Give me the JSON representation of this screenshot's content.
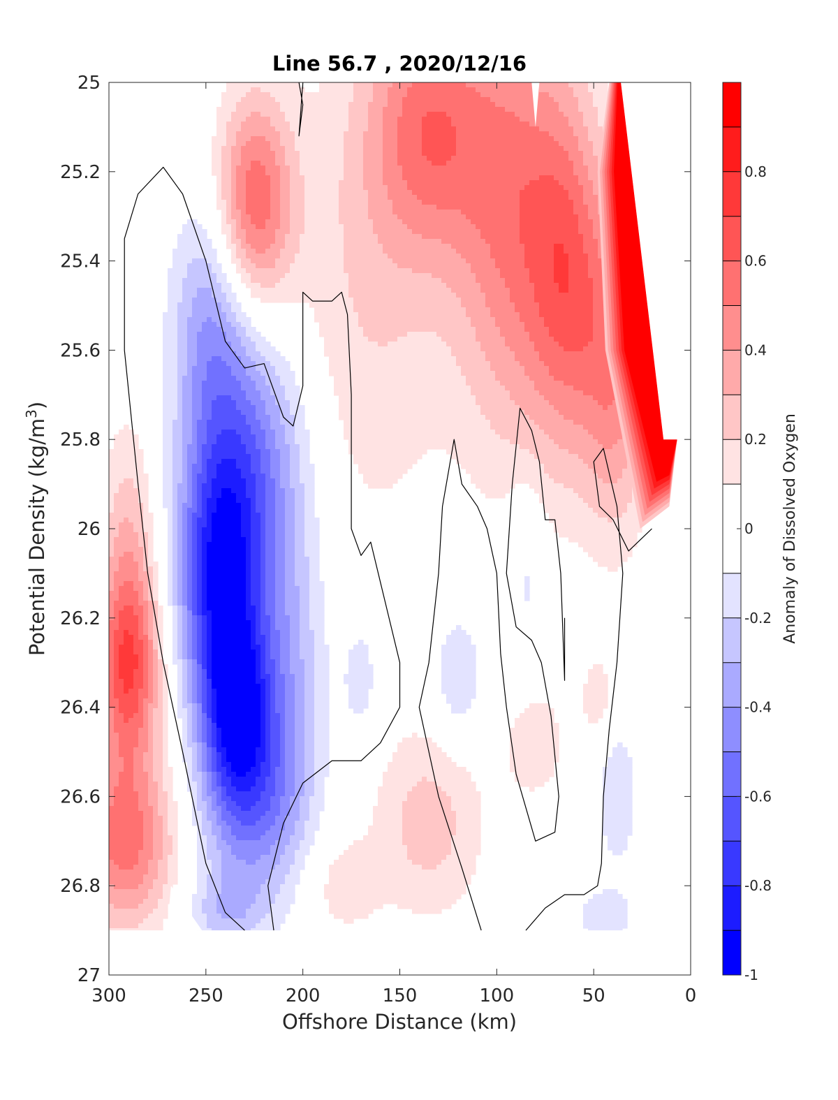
{
  "chart_data": {
    "type": "contour",
    "title": "Line 56.7 , 2020/12/16",
    "xlabel": "Offshore Distance (km)",
    "ylabel_main": "Potential Density (kg/m",
    "ylabel_sup": "3",
    "ylabel_close": ")",
    "xlim": [
      300,
      0
    ],
    "ylim": [
      27,
      25
    ],
    "x_reversed": true,
    "y_reversed": true,
    "grid": false,
    "x_ticks": [
      {
        "v": 300,
        "label": "300"
      },
      {
        "v": 250,
        "label": "250"
      },
      {
        "v": 200,
        "label": "200"
      },
      {
        "v": 150,
        "label": "150"
      },
      {
        "v": 100,
        "label": "100"
      },
      {
        "v": 50,
        "label": "50"
      },
      {
        "v": 0,
        "label": "0"
      }
    ],
    "y_ticks": [
      {
        "v": 25,
        "label": "25"
      },
      {
        "v": 25.2,
        "label": "25.2"
      },
      {
        "v": 25.4,
        "label": "25.4"
      },
      {
        "v": 25.6,
        "label": "25.6"
      },
      {
        "v": 25.8,
        "label": "25.8"
      },
      {
        "v": 26,
        "label": "26"
      },
      {
        "v": 26.2,
        "label": "26.2"
      },
      {
        "v": 26.4,
        "label": "26.4"
      },
      {
        "v": 26.6,
        "label": "26.6"
      },
      {
        "v": 26.8,
        "label": "26.8"
      },
      {
        "v": 27,
        "label": "27"
      }
    ],
    "colorbar": {
      "label": "Anomaly of Dissolved Oxygen",
      "range": [
        -1,
        1
      ],
      "ticks": [
        {
          "v": 0.8,
          "label": "0.8"
        },
        {
          "v": 0.6,
          "label": "0.6"
        },
        {
          "v": 0.4,
          "label": "0.4"
        },
        {
          "v": 0.2,
          "label": "0.2"
        },
        {
          "v": 0,
          "label": "0"
        },
        {
          "v": -0.2,
          "label": "-0.2"
        },
        {
          "v": -0.4,
          "label": "-0.4"
        },
        {
          "v": -0.6,
          "label": "-0.6"
        },
        {
          "v": -0.8,
          "label": "-0.8"
        },
        {
          "v": -1,
          "label": "-1"
        }
      ],
      "levels": [
        {
          "lo": 0.9,
          "hi": 1.0,
          "color": "#ff0000"
        },
        {
          "lo": 0.8,
          "hi": 0.9,
          "color": "#ff1c1c"
        },
        {
          "lo": 0.7,
          "hi": 0.8,
          "color": "#ff3939"
        },
        {
          "lo": 0.6,
          "hi": 0.7,
          "color": "#ff5555"
        },
        {
          "lo": 0.5,
          "hi": 0.6,
          "color": "#ff7171"
        },
        {
          "lo": 0.4,
          "hi": 0.5,
          "color": "#ff8e8e"
        },
        {
          "lo": 0.3,
          "hi": 0.4,
          "color": "#ffaaaa"
        },
        {
          "lo": 0.2,
          "hi": 0.3,
          "color": "#ffc6c6"
        },
        {
          "lo": 0.1,
          "hi": 0.2,
          "color": "#ffe3e3"
        },
        {
          "lo": -0.1,
          "hi": 0.1,
          "color": "#ffffff"
        },
        {
          "lo": -0.2,
          "hi": -0.1,
          "color": "#e3e3ff"
        },
        {
          "lo": -0.3,
          "hi": -0.2,
          "color": "#c6c6ff"
        },
        {
          "lo": -0.4,
          "hi": -0.3,
          "color": "#aaaaff"
        },
        {
          "lo": -0.5,
          "hi": -0.4,
          "color": "#8e8eff"
        },
        {
          "lo": -0.6,
          "hi": -0.5,
          "color": "#7171ff"
        },
        {
          "lo": -0.7,
          "hi": -0.6,
          "color": "#5555ff"
        },
        {
          "lo": -0.8,
          "hi": -0.7,
          "color": "#3939ff"
        },
        {
          "lo": -0.9,
          "hi": -0.8,
          "color": "#1c1cff"
        },
        {
          "lo": -1.0,
          "hi": -0.9,
          "color": "#0000ff"
        }
      ]
    },
    "no_data_region_x_km": [
      5,
      35
    ],
    "no_data_region_top_y": 25.0,
    "no_data_bottom_y": 26.9,
    "features": [
      {
        "kind": "positive",
        "x": 225,
        "y": 25.27,
        "sx": 14,
        "sy": 0.17,
        "amp": 0.58
      },
      {
        "kind": "positive",
        "x": 135,
        "y": 25.1,
        "sx": 22,
        "sy": 0.2,
        "amp": 0.48
      },
      {
        "kind": "positive",
        "x": 90,
        "y": 25.3,
        "sx": 22,
        "sy": 0.36,
        "amp": 0.5
      },
      {
        "kind": "positive",
        "x": 62,
        "y": 25.45,
        "sx": 14,
        "sy": 0.28,
        "amp": 0.45
      },
      {
        "kind": "positive",
        "x": 38,
        "y": 25.65,
        "sx": 12,
        "sy": 0.25,
        "amp": 0.42
      },
      {
        "kind": "positive",
        "x": 165,
        "y": 25.45,
        "sx": 30,
        "sy": 0.4,
        "amp": 0.2
      },
      {
        "kind": "positive",
        "x": 290,
        "y": 26.32,
        "sx": 12,
        "sy": 0.15,
        "amp": 0.62
      },
      {
        "kind": "positive",
        "x": 292,
        "y": 26.7,
        "sx": 18,
        "sy": 0.14,
        "amp": 0.55
      },
      {
        "kind": "positive",
        "x": 290,
        "y": 26.05,
        "sx": 10,
        "sy": 0.2,
        "amp": 0.28
      },
      {
        "kind": "positive",
        "x": 135,
        "y": 26.66,
        "sx": 20,
        "sy": 0.15,
        "amp": 0.25
      },
      {
        "kind": "positive",
        "x": 180,
        "y": 26.8,
        "sx": 14,
        "sy": 0.08,
        "amp": 0.16
      },
      {
        "kind": "positive",
        "x": 80,
        "y": 26.48,
        "sx": 12,
        "sy": 0.1,
        "amp": 0.16
      },
      {
        "kind": "positive",
        "x": 48,
        "y": 26.38,
        "sx": 6,
        "sy": 0.07,
        "amp": 0.17
      },
      {
        "kind": "negative",
        "x": 243,
        "y": 26.11,
        "sx": 15,
        "sy": 0.21,
        "amp": -0.8
      },
      {
        "kind": "negative",
        "x": 234,
        "y": 26.4,
        "sx": 12,
        "sy": 0.14,
        "amp": -0.72
      },
      {
        "kind": "negative",
        "x": 226,
        "y": 25.85,
        "sx": 20,
        "sy": 0.22,
        "amp": -0.45
      },
      {
        "kind": "negative",
        "x": 248,
        "y": 25.55,
        "sx": 14,
        "sy": 0.2,
        "amp": -0.35
      },
      {
        "kind": "negative",
        "x": 228,
        "y": 26.62,
        "sx": 18,
        "sy": 0.15,
        "amp": -0.45
      },
      {
        "kind": "negative",
        "x": 208,
        "y": 26.35,
        "sx": 14,
        "sy": 0.25,
        "amp": -0.3
      },
      {
        "kind": "negative",
        "x": 240,
        "y": 26.86,
        "sx": 14,
        "sy": 0.06,
        "amp": -0.22
      },
      {
        "kind": "negative",
        "x": 120,
        "y": 26.33,
        "sx": 9,
        "sy": 0.1,
        "amp": -0.22
      },
      {
        "kind": "negative",
        "x": 170,
        "y": 26.33,
        "sx": 7,
        "sy": 0.1,
        "amp": -0.16
      },
      {
        "kind": "negative",
        "x": 85,
        "y": 26.1,
        "sx": 7,
        "sy": 0.14,
        "amp": -0.15
      },
      {
        "kind": "negative",
        "x": 38,
        "y": 26.6,
        "sx": 8,
        "sy": 0.12,
        "amp": -0.18
      },
      {
        "kind": "negative",
        "x": 45,
        "y": 26.87,
        "sx": 12,
        "sy": 0.05,
        "amp": -0.15
      }
    ],
    "zero_contours": [
      {
        "name": "zero-contour-west",
        "points": [
          [
            230,
            26.9
          ],
          [
            240,
            26.86
          ],
          [
            250,
            26.75
          ],
          [
            262,
            26.5
          ],
          [
            272,
            26.3
          ],
          [
            280,
            26.1
          ],
          [
            285,
            25.9
          ],
          [
            292,
            25.6
          ],
          [
            292,
            25.35
          ],
          [
            285,
            25.25
          ],
          [
            272,
            25.19
          ],
          [
            262,
            25.25
          ],
          [
            250,
            25.4
          ],
          [
            240,
            25.58
          ],
          [
            230,
            25.64
          ],
          [
            220,
            25.63
          ],
          [
            210,
            25.75
          ],
          [
            205,
            25.77
          ],
          [
            200,
            25.68
          ],
          [
            200,
            25.47
          ],
          [
            195,
            25.49
          ],
          [
            185,
            25.49
          ],
          [
            180,
            25.47
          ],
          [
            177,
            25.52
          ],
          [
            175,
            25.7
          ],
          [
            175,
            26.0
          ],
          [
            170,
            26.06
          ],
          [
            165,
            26.03
          ],
          [
            160,
            26.12
          ],
          [
            150,
            26.3
          ],
          [
            150,
            26.4
          ],
          [
            160,
            26.48
          ],
          [
            170,
            26.52
          ],
          [
            185,
            26.52
          ],
          [
            200,
            26.57
          ],
          [
            210,
            26.66
          ],
          [
            218,
            26.8
          ],
          [
            215,
            26.9
          ]
        ]
      },
      {
        "name": "zero-contour-top",
        "points": [
          [
            202,
            25.0
          ],
          [
            200,
            25.05
          ],
          [
            202,
            25.12
          ],
          [
            200,
            25.0
          ]
        ]
      },
      {
        "name": "zero-contour-central",
        "points": [
          [
            108,
            26.9
          ],
          [
            118,
            26.76
          ],
          [
            130,
            26.6
          ],
          [
            140,
            26.4
          ],
          [
            135,
            26.3
          ],
          [
            130,
            26.1
          ],
          [
            128,
            25.95
          ],
          [
            122,
            25.8
          ],
          [
            118,
            25.9
          ],
          [
            110,
            25.95
          ],
          [
            105,
            26.0
          ],
          [
            100,
            26.1
          ],
          [
            98,
            26.28
          ],
          [
            95,
            26.4
          ],
          [
            90,
            26.55
          ],
          [
            80,
            26.7
          ],
          [
            70,
            26.68
          ],
          [
            68,
            26.6
          ],
          [
            72,
            26.42
          ],
          [
            77,
            26.3
          ],
          [
            82,
            26.25
          ],
          [
            90,
            26.22
          ],
          [
            95,
            26.1
          ],
          [
            92,
            25.9
          ],
          [
            88,
            25.73
          ],
          [
            82,
            25.78
          ],
          [
            78,
            25.85
          ],
          [
            75,
            25.98
          ],
          [
            70,
            25.98
          ],
          [
            67,
            26.1
          ],
          [
            65,
            26.34
          ],
          [
            65,
            26.2
          ]
        ]
      },
      {
        "name": "zero-contour-east",
        "points": [
          [
            20,
            26.0
          ],
          [
            32,
            26.05
          ],
          [
            40,
            25.98
          ],
          [
            47,
            25.95
          ],
          [
            50,
            25.85
          ],
          [
            45,
            25.82
          ],
          [
            38,
            25.95
          ],
          [
            35,
            26.1
          ],
          [
            38,
            26.3
          ],
          [
            42,
            26.45
          ],
          [
            45,
            26.6
          ],
          [
            46,
            26.75
          ],
          [
            48,
            26.8
          ],
          [
            55,
            26.82
          ],
          [
            65,
            26.82
          ],
          [
            75,
            26.85
          ],
          [
            85,
            26.9
          ]
        ]
      }
    ]
  }
}
